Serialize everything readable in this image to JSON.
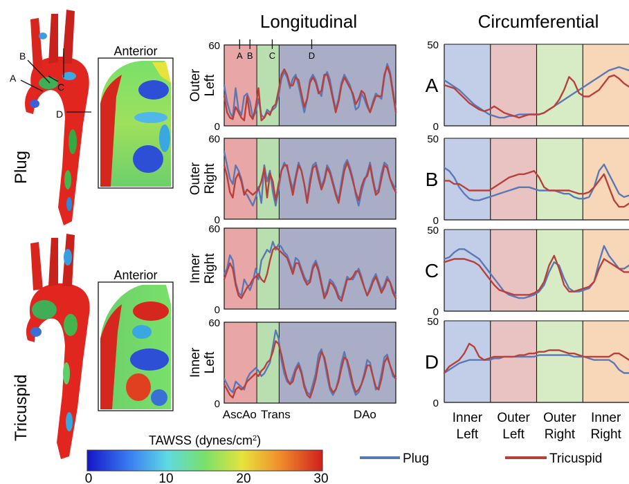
{
  "figure": {
    "row_labels": [
      "Plug",
      "Tricuspid"
    ],
    "inset_label": "Anterior",
    "marker_labels": [
      "A",
      "B",
      "C",
      "D"
    ],
    "colorbar": {
      "title_prefix": "TAWSS (dynes/cm",
      "title_sup": "2",
      "title_suffix": ")",
      "ticks": [
        "0",
        "10",
        "20",
        "30"
      ],
      "min": 0,
      "max": 30
    },
    "legend": [
      {
        "name": "Plug",
        "color": "#5b78b5"
      },
      {
        "name": "Tricuspid",
        "color": "#b7403c"
      }
    ]
  },
  "chart_data": [
    {
      "type": "line",
      "panel": "Longitudinal",
      "title": "Longitudinal",
      "row": "Outer Left",
      "ylabel": [
        "Outer",
        "Left"
      ],
      "yticks": [
        "0",
        "60"
      ],
      "ylim": [
        0,
        60
      ],
      "regions": [
        {
          "label": "AscAo",
          "from": 0,
          "to": 0.19,
          "color": "#e9a6a6"
        },
        {
          "label": "Trans",
          "from": 0.19,
          "to": 0.32,
          "color": "#b9dfb0"
        },
        {
          "label": "DAo",
          "from": 0.32,
          "to": 1,
          "color": "#a9adc6"
        }
      ],
      "location_markers": [
        {
          "label": "A",
          "x": 0.09
        },
        {
          "label": "B",
          "x": 0.15
        },
        {
          "label": "C",
          "x": 0.28
        },
        {
          "label": "D",
          "x": 0.51
        }
      ],
      "series": [
        {
          "name": "Plug",
          "values": [
            30,
            18,
            10,
            6,
            28,
            12,
            8,
            22,
            24,
            18,
            6,
            10,
            20,
            8,
            6,
            12,
            10,
            12,
            14,
            22,
            35,
            40,
            36,
            28,
            35,
            38,
            30,
            20,
            10,
            20,
            34,
            38,
            34,
            26,
            22,
            36,
            40,
            34,
            22,
            12,
            20,
            32,
            38,
            34,
            30,
            22,
            12,
            14,
            24,
            20,
            14,
            10,
            18,
            24,
            22,
            20,
            36,
            46,
            40,
            26,
            12
          ]
        },
        {
          "name": "Tricuspid",
          "values": [
            22,
            10,
            6,
            5,
            14,
            10,
            6,
            4,
            22,
            8,
            5,
            14,
            28,
            4,
            6,
            10,
            8,
            14,
            16,
            26,
            38,
            42,
            38,
            30,
            30,
            36,
            34,
            24,
            14,
            20,
            32,
            36,
            32,
            24,
            26,
            38,
            38,
            30,
            20,
            10,
            18,
            30,
            36,
            32,
            28,
            24,
            16,
            20,
            26,
            24,
            16,
            10,
            16,
            22,
            22,
            22,
            38,
            44,
            38,
            24,
            10
          ]
        }
      ]
    },
    {
      "type": "line",
      "panel": "Longitudinal",
      "row": "Outer Right",
      "ylabel": [
        "Outer",
        "Right"
      ],
      "yticks": [
        "0",
        "60"
      ],
      "ylim": [
        0,
        60
      ],
      "series": [
        {
          "name": "Plug",
          "values": [
            50,
            40,
            30,
            26,
            40,
            36,
            30,
            20,
            18,
            14,
            10,
            16,
            24,
            12,
            40,
            28,
            36,
            20,
            10,
            22,
            36,
            42,
            38,
            30,
            22,
            32,
            42,
            36,
            26,
            14,
            30,
            40,
            42,
            34,
            24,
            30,
            40,
            36,
            28,
            20,
            14,
            28,
            40,
            44,
            38,
            30,
            18,
            10,
            20,
            28,
            34,
            42,
            30,
            20,
            22,
            34,
            42,
            40,
            30,
            26,
            22
          ]
        },
        {
          "name": "Tricuspid",
          "values": [
            40,
            32,
            20,
            16,
            30,
            34,
            28,
            18,
            22,
            20,
            18,
            20,
            22,
            28,
            38,
            16,
            34,
            28,
            14,
            26,
            36,
            40,
            40,
            28,
            18,
            30,
            40,
            36,
            26,
            12,
            26,
            38,
            40,
            30,
            22,
            28,
            38,
            34,
            26,
            18,
            12,
            24,
            36,
            42,
            36,
            28,
            20,
            14,
            24,
            30,
            32,
            40,
            28,
            18,
            20,
            30,
            40,
            38,
            30,
            24,
            20
          ]
        }
      ]
    },
    {
      "type": "line",
      "panel": "Longitudinal",
      "row": "Inner Right",
      "ylabel": [
        "Inner",
        "Right"
      ],
      "yticks": [
        "0",
        "60"
      ],
      "ylim": [
        0,
        60
      ],
      "series": [
        {
          "name": "Plug",
          "values": [
            26,
            30,
            40,
            36,
            20,
            12,
            10,
            22,
            18,
            14,
            20,
            30,
            22,
            36,
            40,
            44,
            42,
            50,
            44,
            48,
            46,
            42,
            40,
            34,
            28,
            38,
            36,
            30,
            24,
            20,
            22,
            32,
            36,
            30,
            20,
            10,
            14,
            22,
            20,
            16,
            10,
            8,
            16,
            24,
            22,
            22,
            26,
            30,
            24,
            16,
            10,
            16,
            22,
            26,
            20,
            14,
            18,
            24,
            20,
            14,
            10
          ]
        },
        {
          "name": "Tricuspid",
          "values": [
            22,
            28,
            34,
            30,
            18,
            10,
            8,
            12,
            16,
            18,
            22,
            24,
            26,
            22,
            20,
            26,
            36,
            44,
            46,
            44,
            42,
            40,
            38,
            32,
            26,
            34,
            34,
            28,
            22,
            18,
            20,
            30,
            34,
            28,
            18,
            8,
            12,
            20,
            18,
            14,
            8,
            6,
            14,
            22,
            22,
            24,
            28,
            28,
            22,
            16,
            10,
            14,
            20,
            24,
            18,
            12,
            16,
            22,
            20,
            12,
            8
          ]
        }
      ]
    },
    {
      "type": "line",
      "panel": "Longitudinal",
      "row": "Inner Left",
      "ylabel": [
        "Inner",
        "Left"
      ],
      "yticks": [
        "0",
        "60"
      ],
      "ylim": [
        0,
        60
      ],
      "xlabels": [
        "AscAo",
        "Trans",
        "DAo"
      ],
      "series": [
        {
          "name": "Plug",
          "values": [
            18,
            14,
            10,
            8,
            16,
            14,
            12,
            10,
            18,
            22,
            24,
            26,
            24,
            20,
            22,
            26,
            30,
            42,
            54,
            48,
            32,
            22,
            16,
            14,
            20,
            26,
            30,
            24,
            14,
            8,
            6,
            14,
            22,
            36,
            40,
            32,
            20,
            10,
            6,
            10,
            18,
            30,
            38,
            30,
            20,
            12,
            6,
            8,
            14,
            22,
            32,
            30,
            20,
            10,
            12,
            22,
            34,
            36,
            28,
            20,
            18
          ]
        },
        {
          "name": "Tricuspid",
          "values": [
            14,
            10,
            6,
            4,
            10,
            12,
            10,
            12,
            16,
            18,
            20,
            22,
            20,
            24,
            26,
            30,
            32,
            38,
            46,
            44,
            36,
            26,
            18,
            14,
            16,
            24,
            28,
            22,
            12,
            6,
            4,
            10,
            18,
            30,
            38,
            34,
            24,
            12,
            8,
            10,
            16,
            26,
            34,
            32,
            24,
            14,
            8,
            10,
            14,
            20,
            28,
            28,
            20,
            12,
            10,
            18,
            30,
            34,
            28,
            22,
            18
          ]
        }
      ]
    },
    {
      "type": "line",
      "panel": "Circumferential",
      "title": "Circumferential",
      "row": "A",
      "row_label": "A",
      "yticks": [
        "0",
        "50"
      ],
      "ylim": [
        0,
        50
      ],
      "sectors": [
        {
          "label": [
            "Inner",
            "Left"
          ],
          "color": "#c2cde8"
        },
        {
          "label": [
            "Outer",
            "Left"
          ],
          "color": "#e9c2c2"
        },
        {
          "label": [
            "Outer",
            "Right"
          ],
          "color": "#d7ebc4"
        },
        {
          "label": [
            "Inner",
            "Right"
          ],
          "color": "#f7d7b8"
        }
      ],
      "series": [
        {
          "name": "Plug",
          "values": [
            28,
            26,
            24,
            22,
            19,
            16,
            13,
            11,
            9,
            7,
            6,
            5,
            5,
            6,
            6,
            7,
            7,
            7,
            7,
            7,
            8,
            10,
            12,
            14,
            16,
            18,
            20,
            22,
            24,
            26,
            28,
            30,
            32,
            34,
            35,
            36,
            35,
            34
          ]
        },
        {
          "name": "Tricuspid",
          "values": [
            25,
            24,
            23,
            20,
            17,
            14,
            12,
            10,
            9,
            10,
            12,
            10,
            8,
            7,
            6,
            5,
            6,
            7,
            7,
            7,
            8,
            10,
            12,
            16,
            22,
            30,
            27,
            20,
            18,
            18,
            20,
            22,
            26,
            30,
            31,
            29,
            26,
            24
          ]
        }
      ]
    },
    {
      "type": "line",
      "panel": "Circumferential",
      "row": "B",
      "row_label": "B",
      "yticks": [
        "0",
        "50"
      ],
      "ylim": [
        0,
        50
      ],
      "series": [
        {
          "name": "Plug",
          "values": [
            32,
            30,
            26,
            20,
            16,
            13,
            12,
            12,
            13,
            14,
            15,
            16,
            17,
            18,
            19,
            20,
            20,
            20,
            19,
            18,
            18,
            18,
            18,
            17,
            16,
            16,
            14,
            13,
            13,
            14,
            20,
            30,
            34,
            28,
            22,
            16,
            14,
            15
          ]
        },
        {
          "name": "Tricuspid",
          "values": [
            24,
            24,
            22,
            22,
            20,
            18,
            18,
            18,
            18,
            18,
            20,
            22,
            24,
            26,
            27,
            28,
            28,
            29,
            30,
            26,
            20,
            18,
            18,
            18,
            18,
            18,
            17,
            16,
            16,
            17,
            20,
            24,
            28,
            20,
            12,
            8,
            8,
            10
          ]
        }
      ]
    },
    {
      "type": "line",
      "panel": "Circumferential",
      "row": "C",
      "row_label": "C",
      "yticks": [
        "0",
        "50"
      ],
      "ylim": [
        0,
        50
      ],
      "series": [
        {
          "name": "Plug",
          "values": [
            32,
            33,
            36,
            38,
            38,
            36,
            34,
            32,
            28,
            24,
            20,
            16,
            12,
            10,
            9,
            8,
            8,
            9,
            10,
            12,
            16,
            24,
            30,
            28,
            20,
            14,
            12,
            12,
            13,
            14,
            18,
            30,
            40,
            34,
            30,
            26,
            26,
            28
          ]
        },
        {
          "name": "Tricuspid",
          "values": [
            30,
            31,
            32,
            32,
            32,
            31,
            30,
            28,
            24,
            20,
            16,
            13,
            12,
            11,
            10,
            10,
            10,
            10,
            11,
            13,
            18,
            28,
            34,
            26,
            16,
            12,
            12,
            13,
            14,
            15,
            18,
            26,
            32,
            30,
            28,
            26,
            24,
            24
          ]
        }
      ]
    },
    {
      "type": "line",
      "panel": "Circumferential",
      "row": "D",
      "row_label": "D",
      "yticks": [
        "0",
        "50"
      ],
      "ylim": [
        0,
        50
      ],
      "xlabels": [
        [
          "Inner",
          "Left"
        ],
        [
          "Outer",
          "Left"
        ],
        [
          "Outer",
          "Right"
        ],
        [
          "Inner",
          "Right"
        ]
      ],
      "series": [
        {
          "name": "Plug",
          "values": [
            18,
            20,
            22,
            24,
            25,
            26,
            26,
            26,
            26,
            26,
            27,
            27,
            28,
            28,
            28,
            28,
            28,
            28,
            28,
            29,
            29,
            29,
            29,
            29,
            29,
            29,
            28,
            28,
            28,
            27,
            26,
            26,
            26,
            26,
            24,
            20,
            18,
            18
          ]
        },
        {
          "name": "Tricuspid",
          "values": [
            18,
            22,
            24,
            26,
            30,
            36,
            34,
            28,
            26,
            27,
            28,
            28,
            28,
            28,
            28,
            29,
            29,
            30,
            30,
            31,
            31,
            32,
            32,
            32,
            31,
            30,
            30,
            29,
            28,
            28,
            28,
            28,
            28,
            28,
            30,
            30,
            28,
            26
          ]
        }
      ]
    }
  ]
}
